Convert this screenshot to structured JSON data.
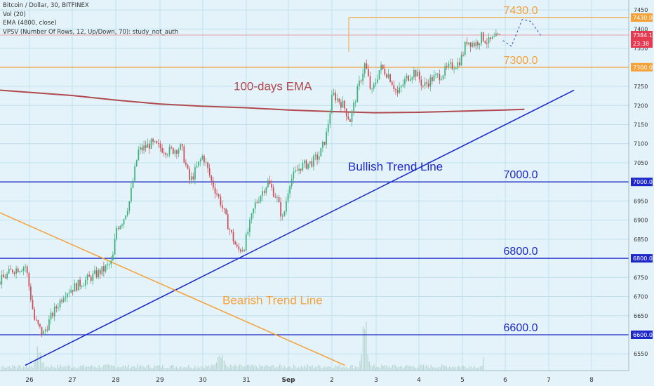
{
  "legend": {
    "symbol_line": "Bitcoin / Dollar, 30, BITFINEX",
    "vol_line": "Vol (20)",
    "ema_line": "EMA (4800, close)",
    "vpsv_line": "VPSV (Number Of Rows, 12, Up/Down, 70): study_not_auth"
  },
  "colors": {
    "background": "#e3f3f9",
    "grid": "#bfe0ee",
    "up_candle": "#3bb07a",
    "down_candle": "#cf4a55",
    "volume": "#b9d8d4",
    "ema": "#b04a4f",
    "level_orange": "#f5a13a",
    "level_blue": "#1d27c9",
    "bullish_trend": "#1d27c9",
    "bearish_trend": "#f5a13a",
    "last_price": "#e53950"
  },
  "chart_data": {
    "type": "candlestick",
    "x_labels": [
      "26",
      "27",
      "28",
      "29",
      "30",
      "31",
      "Sep",
      "2",
      "3",
      "4",
      "5",
      "6",
      "7",
      "8"
    ],
    "y_ticks": [
      6550,
      6600,
      6650,
      6700,
      6750,
      6800,
      6850,
      6900,
      6950,
      7000,
      7050,
      7100,
      7150,
      7200,
      7250,
      7300,
      7350,
      7400,
      7450
    ],
    "ylim": [
      6505,
      7478
    ],
    "horizontal_levels": [
      {
        "label": "7430.0",
        "price": 7430,
        "color": "orange"
      },
      {
        "label": "7300.0",
        "price": 7300,
        "color": "orange"
      },
      {
        "label": "7000.0",
        "price": 7000,
        "color": "blue"
      },
      {
        "label": "6800.0",
        "price": 6800,
        "color": "blue"
      },
      {
        "label": "6600.0",
        "price": 6600,
        "color": "blue"
      }
    ],
    "axis_badges": [
      {
        "label": "7430.0",
        "price": 7430,
        "color": "orange"
      },
      {
        "label": "7384.1",
        "price": 7384.1,
        "color": "red"
      },
      {
        "label": "23:38",
        "price": 7362,
        "color": "red"
      },
      {
        "label": "7300.0",
        "price": 7300,
        "color": "orange"
      },
      {
        "label": "7000.0",
        "price": 7000,
        "color": "blue"
      },
      {
        "label": "6800.0",
        "price": 6800,
        "color": "blue"
      },
      {
        "label": "6600.0",
        "price": 6600,
        "color": "blue"
      }
    ],
    "annotations": {
      "ema_label": "100-days EMA",
      "bullish_label": "Bullish Trend Line",
      "bearish_label": "Bearish Trend Line"
    },
    "last_price": 7384.1,
    "trend_lines": [
      {
        "name": "Bullish Trend Line",
        "from": [
          25.9,
          6520
        ],
        "to": [
          7.6,
          7240
        ]
      },
      {
        "name": "Bearish Trend Line",
        "from": [
          25.3,
          6920
        ],
        "to": [
          2.3,
          6520
        ]
      }
    ],
    "ema_path": [
      [
        25.3,
        7240
      ],
      [
        27,
        7226
      ],
      [
        28,
        7214
      ],
      [
        29,
        7204
      ],
      [
        30,
        7198
      ],
      [
        31,
        7194
      ],
      [
        1,
        7188
      ],
      [
        2,
        7184
      ],
      [
        3,
        7181
      ],
      [
        4,
        7182
      ],
      [
        5,
        7185
      ],
      [
        6,
        7188
      ],
      [
        6.45,
        7190
      ]
    ],
    "price_path": [
      [
        25.3,
        6740
      ],
      [
        25.6,
        6770
      ],
      [
        25.9,
        6780
      ],
      [
        26.1,
        6640
      ],
      [
        26.3,
        6600
      ],
      [
        26.5,
        6650
      ],
      [
        26.8,
        6710
      ],
      [
        27.1,
        6730
      ],
      [
        27.4,
        6750
      ],
      [
        27.7,
        6770
      ],
      [
        27.9,
        6790
      ],
      [
        28.0,
        6880
      ],
      [
        28.15,
        6900
      ],
      [
        28.3,
        6950
      ],
      [
        28.5,
        7080
      ],
      [
        28.8,
        7100
      ],
      [
        29.2,
        7080
      ],
      [
        29.5,
        7090
      ],
      [
        29.7,
        7000
      ],
      [
        30.0,
        7070
      ],
      [
        30.2,
        7000
      ],
      [
        30.4,
        6950
      ],
      [
        30.6,
        6880
      ],
      [
        30.8,
        6820
      ],
      [
        30.95,
        6830
      ],
      [
        31.2,
        6940
      ],
      [
        31.5,
        7000
      ],
      [
        31.7,
        6960
      ],
      [
        31.85,
        6900
      ],
      [
        32.0,
        7000
      ],
      [
        32.25,
        7040
      ],
      [
        32.5,
        7050
      ],
      [
        32.7,
        7070
      ],
      [
        32.85,
        7120
      ],
      [
        33.0,
        7230
      ],
      [
        33.25,
        7200
      ],
      [
        33.4,
        7160
      ],
      [
        33.6,
        7250
      ],
      [
        33.75,
        7310
      ],
      [
        33.9,
        7230
      ],
      [
        34.1,
        7300
      ],
      [
        34.3,
        7280
      ],
      [
        34.5,
        7230
      ],
      [
        34.7,
        7270
      ],
      [
        34.9,
        7290
      ],
      [
        35.1,
        7250
      ],
      [
        35.3,
        7270
      ],
      [
        35.5,
        7280
      ],
      [
        35.7,
        7300
      ],
      [
        35.9,
        7310
      ],
      [
        36.0,
        7330
      ],
      [
        36.1,
        7370
      ],
      [
        36.3,
        7360
      ],
      [
        36.45,
        7380
      ],
      [
        36.6,
        7365
      ],
      [
        36.75,
        7375
      ],
      [
        36.9,
        7380
      ]
    ],
    "projection_path": [
      [
        36.95,
        7370
      ],
      [
        37.15,
        7355
      ],
      [
        37.4,
        7425
      ],
      [
        37.6,
        7420
      ],
      [
        37.85,
        7380
      ]
    ],
    "volume_spikes": [
      [
        33.75,
        60
      ],
      [
        36.6,
        40
      ],
      [
        30.4,
        30
      ],
      [
        26.2,
        25
      ]
    ]
  }
}
